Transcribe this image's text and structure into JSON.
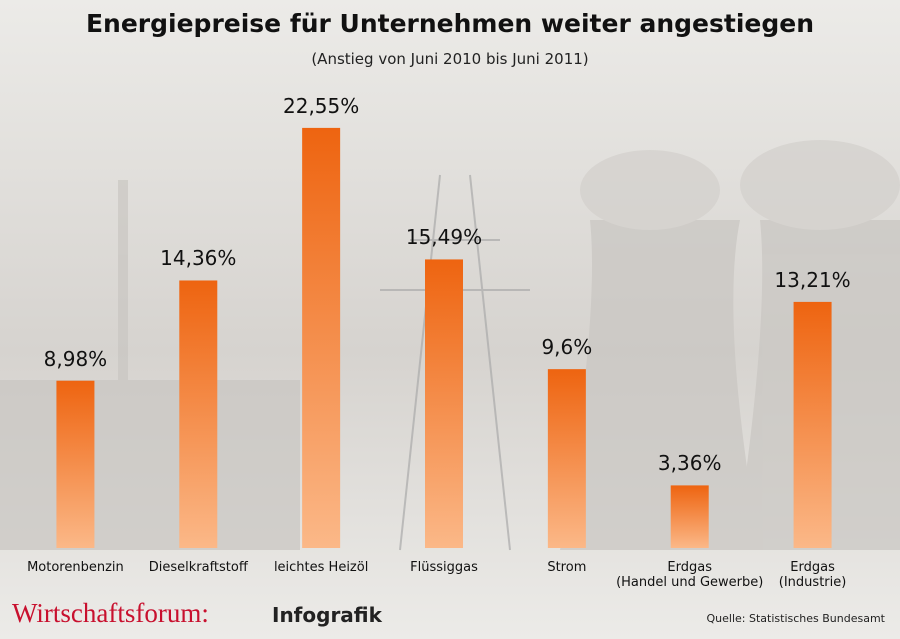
{
  "chart_data": {
    "type": "bar",
    "title": "Energiepreise für Unternehmen weiter angestiegen",
    "subtitle": "(Anstieg von Juni 2010 bis Juni 2011)",
    "categories": [
      "Motorenbenzin",
      "Dieselkraftstoff",
      "leichtes Heizöl",
      "Flüssiggas",
      "Strom",
      "Erdgas\n(Handel und Gewerbe)",
      "Erdgas\n(Industrie)"
    ],
    "values": [
      8.98,
      14.36,
      22.55,
      15.49,
      9.6,
      3.36,
      13.21
    ],
    "value_labels": [
      "8,98%",
      "14,36%",
      "22,55%",
      "15,49%",
      "9,6%",
      "3,36%",
      "13,21%"
    ],
    "color": "#f06a10",
    "brand": "Wirtschaftsforum:",
    "brand_suffix": "Infografik",
    "source": "Quelle: Statistisches Bundesamt"
  }
}
